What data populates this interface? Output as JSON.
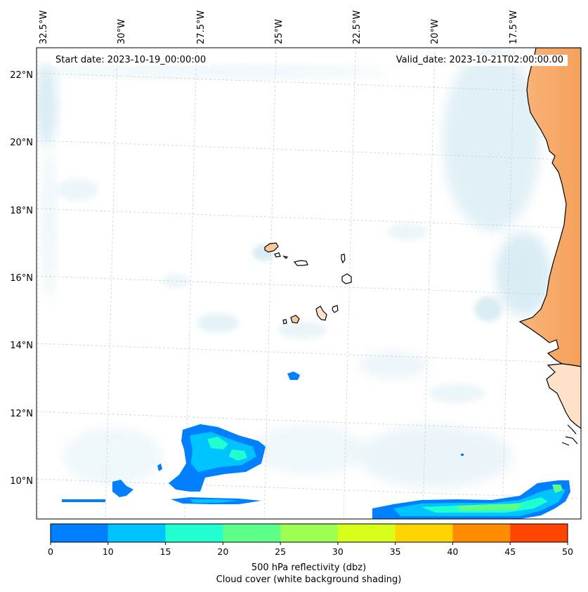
{
  "header": {
    "start_date": "Start date: 2023-10-19_00:00:00",
    "valid_date": "Valid_date: 2023-10-21T02:00:00.00"
  },
  "map": {
    "lon_labels": [
      "32.5°W",
      "30°W",
      "27.5°W",
      "25°W",
      "22.5°W",
      "20°W",
      "17.5°W"
    ],
    "lat_labels": [
      "22°N",
      "20°N",
      "18°N",
      "16°N",
      "14°N",
      "12°N",
      "10°N"
    ],
    "colors": {
      "land": "#f5a05a",
      "land_light": "#fde2c9",
      "cloud": "#d6ebf3",
      "coast": "#000000",
      "grid": "#c8c8c8"
    }
  },
  "colorbar": {
    "colors": [
      "#0080ff",
      "#00c4ff",
      "#1fffd0",
      "#5cff88",
      "#9bff52",
      "#d8ff1a",
      "#ffd400",
      "#ff8c00",
      "#ff4500"
    ],
    "ticks": [
      "0",
      "10",
      "15",
      "20",
      "25",
      "30",
      "35",
      "40",
      "45",
      "50"
    ],
    "label": "500 hPa reflectivity (dbz)",
    "sublabel": "Cloud cover (white background shading)"
  }
}
